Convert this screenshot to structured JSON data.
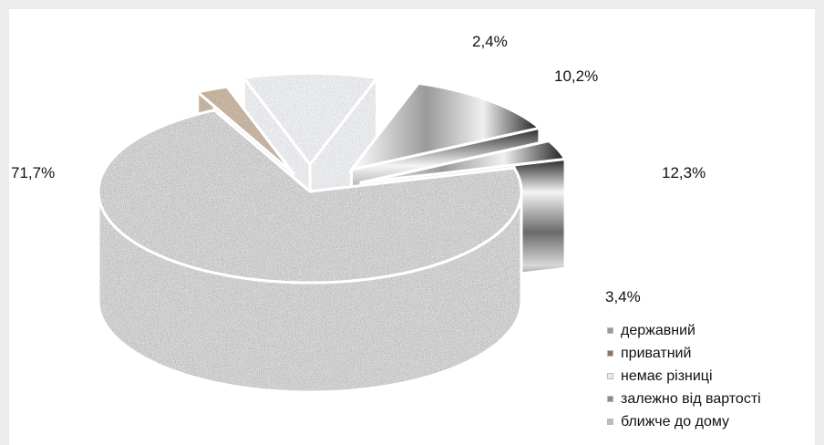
{
  "chart_data": {
    "type": "pie",
    "title": "",
    "categories": [
      "державний",
      "приватний",
      "немає різниці",
      "залежно від вартості",
      "ближче до дому"
    ],
    "values": [
      71.7,
      2.4,
      10.2,
      12.3,
      3.4
    ],
    "value_labels": [
      "71,7%",
      "2,4%",
      "10,2%",
      "12,3%",
      "3,4%"
    ],
    "legend_position": "bottom-right",
    "style": "exploded 3D pie with textured fills",
    "colors": [
      "#9a9a9a",
      "#8a7362",
      "#e8eaec",
      "#8c8c8c",
      "#bdbdbd"
    ]
  }
}
